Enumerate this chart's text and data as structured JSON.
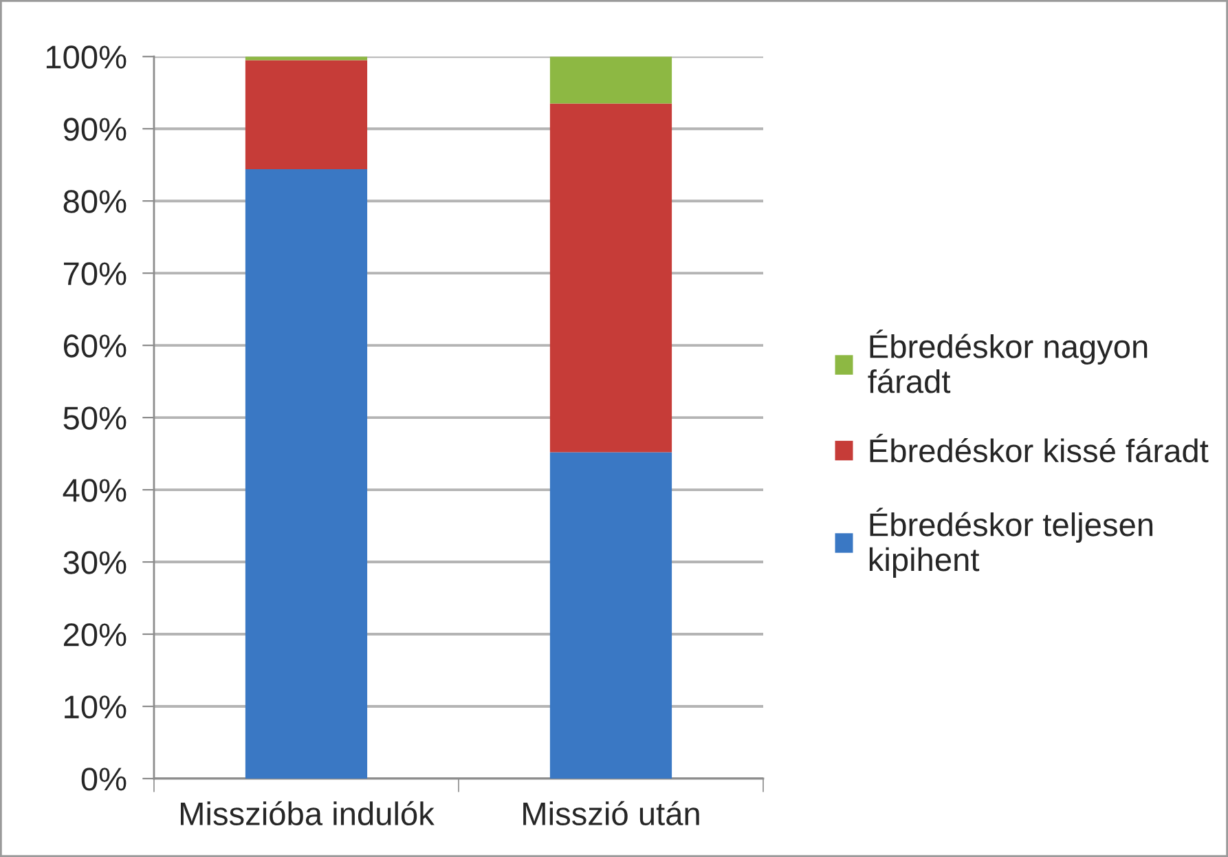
{
  "chart_data": {
    "type": "bar",
    "stacked": true,
    "categories": [
      "Misszióba indulók",
      "Misszió után"
    ],
    "series": [
      {
        "name": "Ébredéskor teljesen kipihent",
        "color": "#3a78c4",
        "values": [
          84.4,
          45.2
        ]
      },
      {
        "name": "Ébredéskor kissé fáradt",
        "color": "#c63c38",
        "values": [
          15.1,
          48.3
        ]
      },
      {
        "name": "Ébredéskor nagyon fáradt",
        "color": "#8db843",
        "values": [
          0.5,
          6.5
        ]
      }
    ],
    "ylim": [
      0,
      100
    ],
    "yticks": [
      {
        "value": 0,
        "label": "0%"
      },
      {
        "value": 10,
        "label": "10%"
      },
      {
        "value": 20,
        "label": "20%"
      },
      {
        "value": 30,
        "label": "30%"
      },
      {
        "value": 40,
        "label": "40%"
      },
      {
        "value": 50,
        "label": "50%"
      },
      {
        "value": 60,
        "label": "60%"
      },
      {
        "value": 70,
        "label": "70%"
      },
      {
        "value": 80,
        "label": "80%"
      },
      {
        "value": 90,
        "label": "90%"
      },
      {
        "value": 100,
        "label": "100%"
      }
    ],
    "grid": "y",
    "legend": "right"
  }
}
